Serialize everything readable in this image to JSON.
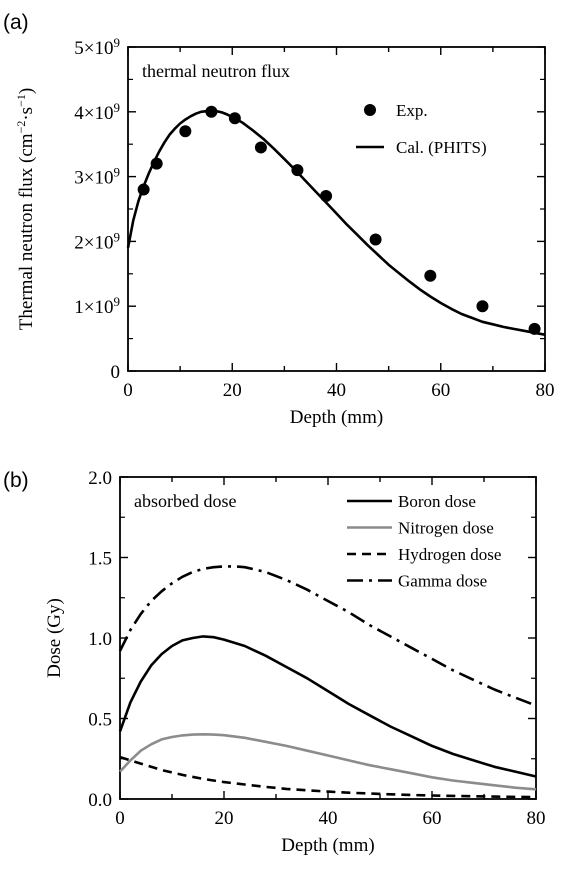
{
  "chart_data": [
    {
      "panel_label": "(a)",
      "type": "scatter",
      "annotation": "thermal neutron flux",
      "xlabel": "Depth (mm)",
      "ylabel_parts": {
        "base": "Thermal neutron flux (cm",
        "exp1": "−2",
        "mid": "·s",
        "exp2": "−1",
        "end": ")"
      },
      "xlim": [
        0,
        80
      ],
      "ylim": [
        0,
        5000000000
      ],
      "xticks": [
        0,
        20,
        40,
        60,
        80
      ],
      "xtick_labels": [
        "0",
        "20",
        "40",
        "60",
        "80"
      ],
      "yticks": [
        0,
        1000000000,
        2000000000,
        3000000000,
        4000000000,
        5000000000
      ],
      "ytick_labels": [
        {
          "mant": "0",
          "exp": ""
        },
        {
          "mant": "1×10",
          "exp": "9"
        },
        {
          "mant": "2×10",
          "exp": "9"
        },
        {
          "mant": "3×10",
          "exp": "9"
        },
        {
          "mant": "4×10",
          "exp": "9"
        },
        {
          "mant": "5×10",
          "exp": "9"
        }
      ],
      "legend_position": "upper-right",
      "grid": false,
      "series": [
        {
          "name": "Exp.",
          "style": "markers",
          "x": [
            3,
            5.5,
            11,
            16,
            20.5,
            25.5,
            32.5,
            38,
            47.5,
            58,
            68,
            78
          ],
          "y": [
            2800000000,
            3200000000,
            3700000000,
            4000000000,
            3900000000,
            3450000000,
            3100000000,
            2700000000,
            2030000000,
            1470000000,
            1000000000,
            650000000
          ]
        },
        {
          "name": "Cal. (PHITS)",
          "style": "solid",
          "x": [
            0,
            1,
            2,
            3,
            4,
            5,
            6,
            7,
            8,
            9,
            10,
            11,
            12,
            13,
            14,
            15,
            16,
            17,
            18,
            19,
            20,
            22,
            24,
            26,
            28,
            30,
            32,
            34,
            36,
            38,
            40,
            42,
            44,
            46,
            48,
            50,
            52,
            54,
            56,
            58,
            60,
            62,
            64,
            66,
            68,
            70,
            72,
            74,
            76,
            78,
            80
          ],
          "y": [
            1900000000,
            2320000000,
            2620000000,
            2850000000,
            3050000000,
            3230000000,
            3390000000,
            3530000000,
            3650000000,
            3740000000,
            3820000000,
            3880000000,
            3930000000,
            3970000000,
            4000000000,
            4010000000,
            4020000000,
            4010000000,
            3990000000,
            3960000000,
            3920000000,
            3830000000,
            3710000000,
            3580000000,
            3430000000,
            3270000000,
            3110000000,
            2940000000,
            2770000000,
            2600000000,
            2430000000,
            2260000000,
            2100000000,
            1940000000,
            1790000000,
            1640000000,
            1510000000,
            1380000000,
            1260000000,
            1150000000,
            1050000000,
            960000000,
            880000000,
            820000000,
            760000000,
            720000000,
            680000000,
            650000000,
            620000000,
            590000000,
            560000000
          ]
        }
      ]
    },
    {
      "panel_label": "(b)",
      "type": "line",
      "annotation": "absorbed dose",
      "xlabel": "Depth (mm)",
      "ylabel": "Dose (Gy)",
      "xlim": [
        0,
        80
      ],
      "ylim": [
        0,
        2
      ],
      "xticks": [
        0,
        20,
        40,
        60,
        80
      ],
      "xtick_labels": [
        "0",
        "20",
        "40",
        "60",
        "80"
      ],
      "yticks": [
        0,
        0.5,
        1,
        1.5,
        2
      ],
      "ytick_labels": [
        "0.0",
        "0.5",
        "1.0",
        "1.5",
        "2.0"
      ],
      "legend_position": "upper-right",
      "grid": false,
      "series": [
        {
          "name": "Boron dose",
          "style": "solid",
          "color": "#000000",
          "x": [
            0,
            2,
            4,
            6,
            8,
            10,
            12,
            14,
            16,
            18,
            20,
            24,
            28,
            32,
            36,
            40,
            44,
            48,
            52,
            56,
            60,
            64,
            68,
            72,
            76,
            80
          ],
          "y": [
            0.42,
            0.6,
            0.73,
            0.83,
            0.9,
            0.95,
            0.985,
            1.0,
            1.01,
            1.005,
            0.99,
            0.95,
            0.89,
            0.82,
            0.75,
            0.67,
            0.59,
            0.52,
            0.45,
            0.39,
            0.33,
            0.28,
            0.24,
            0.2,
            0.17,
            0.14
          ]
        },
        {
          "name": "Nitrogen dose",
          "style": "solid",
          "color": "#8c8c8c",
          "x": [
            0,
            2,
            4,
            6,
            8,
            10,
            12,
            14,
            16,
            18,
            20,
            24,
            28,
            32,
            36,
            40,
            44,
            48,
            52,
            56,
            60,
            64,
            68,
            72,
            76,
            80
          ],
          "y": [
            0.17,
            0.24,
            0.3,
            0.34,
            0.37,
            0.385,
            0.395,
            0.4,
            0.402,
            0.4,
            0.396,
            0.38,
            0.355,
            0.33,
            0.3,
            0.27,
            0.24,
            0.21,
            0.185,
            0.16,
            0.135,
            0.115,
            0.1,
            0.085,
            0.07,
            0.06
          ]
        },
        {
          "name": "Hydrogen dose",
          "style": "dashed",
          "color": "#000000",
          "x": [
            0,
            4,
            8,
            12,
            16,
            20,
            24,
            28,
            32,
            36,
            40,
            44,
            48,
            52,
            56,
            60,
            64,
            68,
            72,
            76,
            80
          ],
          "y": [
            0.26,
            0.22,
            0.18,
            0.15,
            0.125,
            0.105,
            0.09,
            0.075,
            0.063,
            0.054,
            0.046,
            0.039,
            0.034,
            0.029,
            0.025,
            0.022,
            0.019,
            0.017,
            0.015,
            0.013,
            0.012
          ]
        },
        {
          "name": "Gamma dose",
          "style": "dashdot",
          "color": "#000000",
          "x": [
            0,
            2,
            4,
            6,
            8,
            10,
            12,
            14,
            16,
            18,
            20,
            22,
            24,
            28,
            32,
            36,
            40,
            44,
            48,
            52,
            56,
            60,
            64,
            68,
            72,
            76,
            80
          ],
          "y": [
            0.92,
            1.05,
            1.15,
            1.23,
            1.29,
            1.34,
            1.38,
            1.41,
            1.43,
            1.44,
            1.445,
            1.445,
            1.44,
            1.41,
            1.36,
            1.3,
            1.23,
            1.16,
            1.08,
            1.01,
            0.94,
            0.87,
            0.8,
            0.74,
            0.68,
            0.63,
            0.58
          ]
        }
      ]
    }
  ]
}
